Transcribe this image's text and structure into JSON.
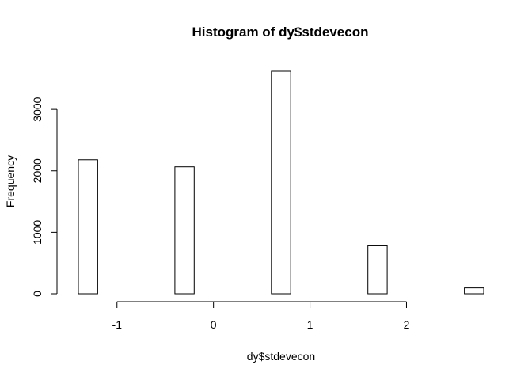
{
  "chart_data": {
    "type": "bar",
    "title": "Histogram of dy$stdevecon",
    "xlabel": "dy$stdevecon",
    "ylabel": "Frequency",
    "bin_width": 0.2,
    "bins": [
      {
        "start": -1.4,
        "end": -1.2,
        "count": 2180
      },
      {
        "start": -1.2,
        "end": -1.0,
        "count": 0
      },
      {
        "start": -1.0,
        "end": -0.8,
        "count": 0
      },
      {
        "start": -0.8,
        "end": -0.6,
        "count": 0
      },
      {
        "start": -0.6,
        "end": -0.4,
        "count": 0
      },
      {
        "start": -0.4,
        "end": -0.2,
        "count": 2065
      },
      {
        "start": -0.2,
        "end": 0.0,
        "count": 0
      },
      {
        "start": 0.0,
        "end": 0.2,
        "count": 0
      },
      {
        "start": 0.2,
        "end": 0.4,
        "count": 0
      },
      {
        "start": 0.4,
        "end": 0.6,
        "count": 0
      },
      {
        "start": 0.6,
        "end": 0.8,
        "count": 3620
      },
      {
        "start": 0.8,
        "end": 1.0,
        "count": 0
      },
      {
        "start": 1.0,
        "end": 1.2,
        "count": 0
      },
      {
        "start": 1.2,
        "end": 1.4,
        "count": 0
      },
      {
        "start": 1.4,
        "end": 1.6,
        "count": 0
      },
      {
        "start": 1.6,
        "end": 1.8,
        "count": 780
      },
      {
        "start": 1.8,
        "end": 2.0,
        "count": 0
      },
      {
        "start": 2.0,
        "end": 2.2,
        "count": 0
      },
      {
        "start": 2.2,
        "end": 2.4,
        "count": 0
      },
      {
        "start": 2.4,
        "end": 2.6,
        "count": 0
      },
      {
        "start": 2.6,
        "end": 2.8,
        "count": 95
      }
    ],
    "xlim": [
      -1.4,
      2.8
    ],
    "ylim": [
      0,
      3620
    ],
    "x_ticks": [
      {
        "value": -1,
        "label": "-1"
      },
      {
        "value": 0,
        "label": "0"
      },
      {
        "value": 1,
        "label": "1"
      },
      {
        "value": 2,
        "label": "2"
      }
    ],
    "y_ticks": [
      {
        "value": 0,
        "label": "0"
      },
      {
        "value": 1000,
        "label": "1000"
      },
      {
        "value": 2000,
        "label": "2000"
      },
      {
        "value": 3000,
        "label": "3000"
      }
    ],
    "grid": false,
    "legend": "none"
  }
}
